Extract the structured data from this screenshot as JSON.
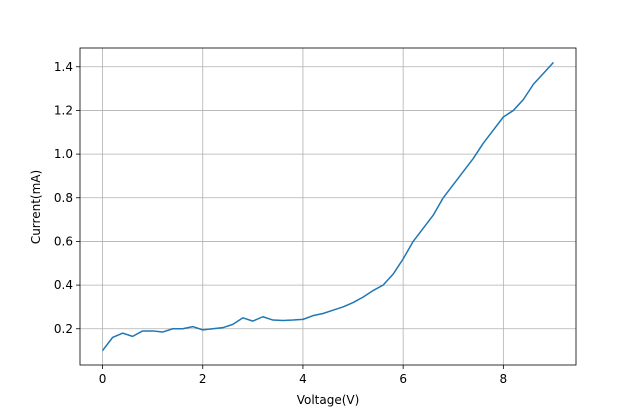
{
  "chart_data": {
    "type": "line",
    "x_label": "Voltage(V)",
    "y_label": "Current(mA)",
    "x": [
      0,
      0.2,
      0.4,
      0.6,
      0.8,
      1.0,
      1.2,
      1.4,
      1.6,
      1.8,
      2.0,
      2.2,
      2.4,
      2.6,
      2.8,
      3.0,
      3.2,
      3.4,
      3.6,
      3.8,
      4.0,
      4.2,
      4.4,
      4.6,
      4.8,
      5.0,
      5.2,
      5.4,
      5.6,
      5.8,
      6.0,
      6.2,
      6.4,
      6.6,
      6.8,
      7.0,
      7.2,
      7.4,
      7.6,
      7.8,
      8.0,
      8.2,
      8.4,
      8.6,
      8.8,
      9.0
    ],
    "series": [
      {
        "color": "#1f77b4",
        "values": [
          0.1,
          0.16,
          0.18,
          0.165,
          0.19,
          0.19,
          0.185,
          0.2,
          0.2,
          0.21,
          0.195,
          0.2,
          0.205,
          0.22,
          0.25,
          0.235,
          0.255,
          0.24,
          0.238,
          0.24,
          0.243,
          0.26,
          0.27,
          0.285,
          0.3,
          0.32,
          0.345,
          0.375,
          0.4,
          0.45,
          0.52,
          0.6,
          0.66,
          0.72,
          0.8,
          0.86,
          0.92,
          0.98,
          1.05,
          1.11,
          1.17,
          1.2,
          1.25,
          1.32,
          1.37,
          1.42
        ]
      }
    ],
    "xlim": [
      -0.45,
      9.45
    ],
    "ylim": [
      0.034,
      1.486
    ],
    "xticks": [
      0,
      2,
      4,
      6,
      8
    ],
    "yticks": [
      0.2,
      0.4,
      0.6,
      0.8,
      {
        "value": 1.0,
        "label": "1.0"
      },
      1.2,
      1.4
    ],
    "grid": true
  }
}
